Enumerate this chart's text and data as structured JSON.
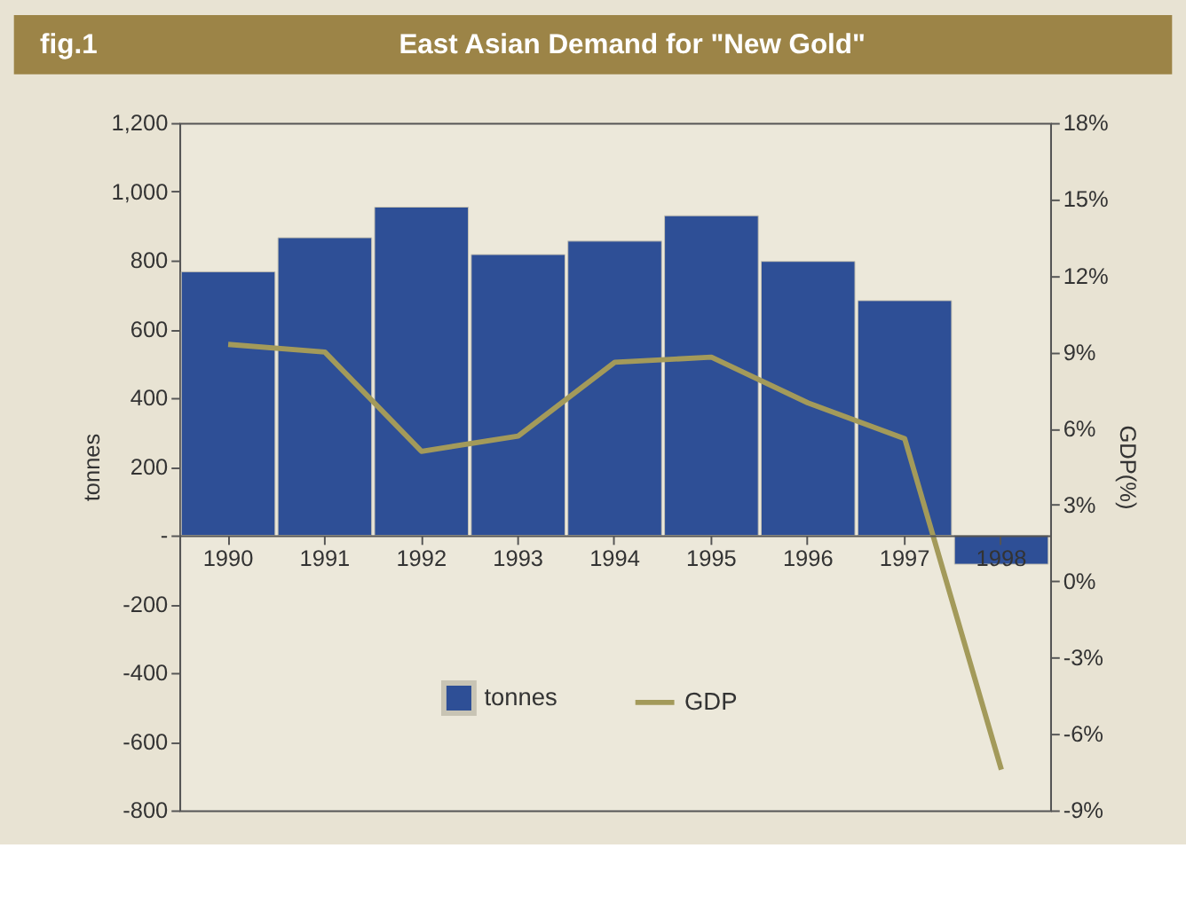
{
  "chart_data": {
    "type": "bar",
    "title": "East Asian Demand for \"New Gold\"",
    "annotations": [
      "fig.1"
    ],
    "categories": [
      "1990",
      "1991",
      "1992",
      "1993",
      "1994",
      "1995",
      "1996",
      "1997",
      "1998"
    ],
    "series": [
      {
        "name": "tonnes",
        "color": "#2e4f96",
        "values": [
          767,
          866,
          955,
          817,
          856,
          930,
          797,
          683,
          -84
        ]
      },
      {
        "name": "GDP",
        "type": "line",
        "axis": "y2",
        "color": "#a39a5a",
        "values": [
          9.3,
          9.0,
          5.1,
          5.7,
          8.6,
          8.8,
          7.0,
          5.6,
          -7.4
        ]
      }
    ],
    "ylabel": "tonnes",
    "y2label": "GDP(%)",
    "ylim": [
      -800,
      1200
    ],
    "yticks": [
      {
        "value": -800,
        "label": "-800"
      },
      {
        "value": -600,
        "label": "-600"
      },
      {
        "value": -400,
        "label": "-400"
      },
      {
        "value": -200,
        "label": "-200"
      },
      {
        "value": 0,
        "label": "-"
      },
      {
        "value": 200,
        "label": "200"
      },
      {
        "value": 400,
        "label": "400"
      },
      {
        "value": 600,
        "label": "600"
      },
      {
        "value": 800,
        "label": "800"
      },
      {
        "value": 1000,
        "label": "1,000"
      },
      {
        "value": 1200,
        "label": "1,200"
      }
    ],
    "y2lim": [
      -9,
      18
    ],
    "y2ticks": [
      {
        "value": -9,
        "label": "-9%"
      },
      {
        "value": -6,
        "label": "-6%"
      },
      {
        "value": -3,
        "label": "-3%"
      },
      {
        "value": 0,
        "label": "0%"
      },
      {
        "value": 3,
        "label": "3%"
      },
      {
        "value": 6,
        "label": "6%"
      },
      {
        "value": 9,
        "label": "9%"
      },
      {
        "value": 12,
        "label": "12%"
      },
      {
        "value": 15,
        "label": "15%"
      },
      {
        "value": 18,
        "label": "18%"
      }
    ],
    "grid": false,
    "legend": "bottom",
    "marker": "none",
    "line_style": "solid"
  }
}
